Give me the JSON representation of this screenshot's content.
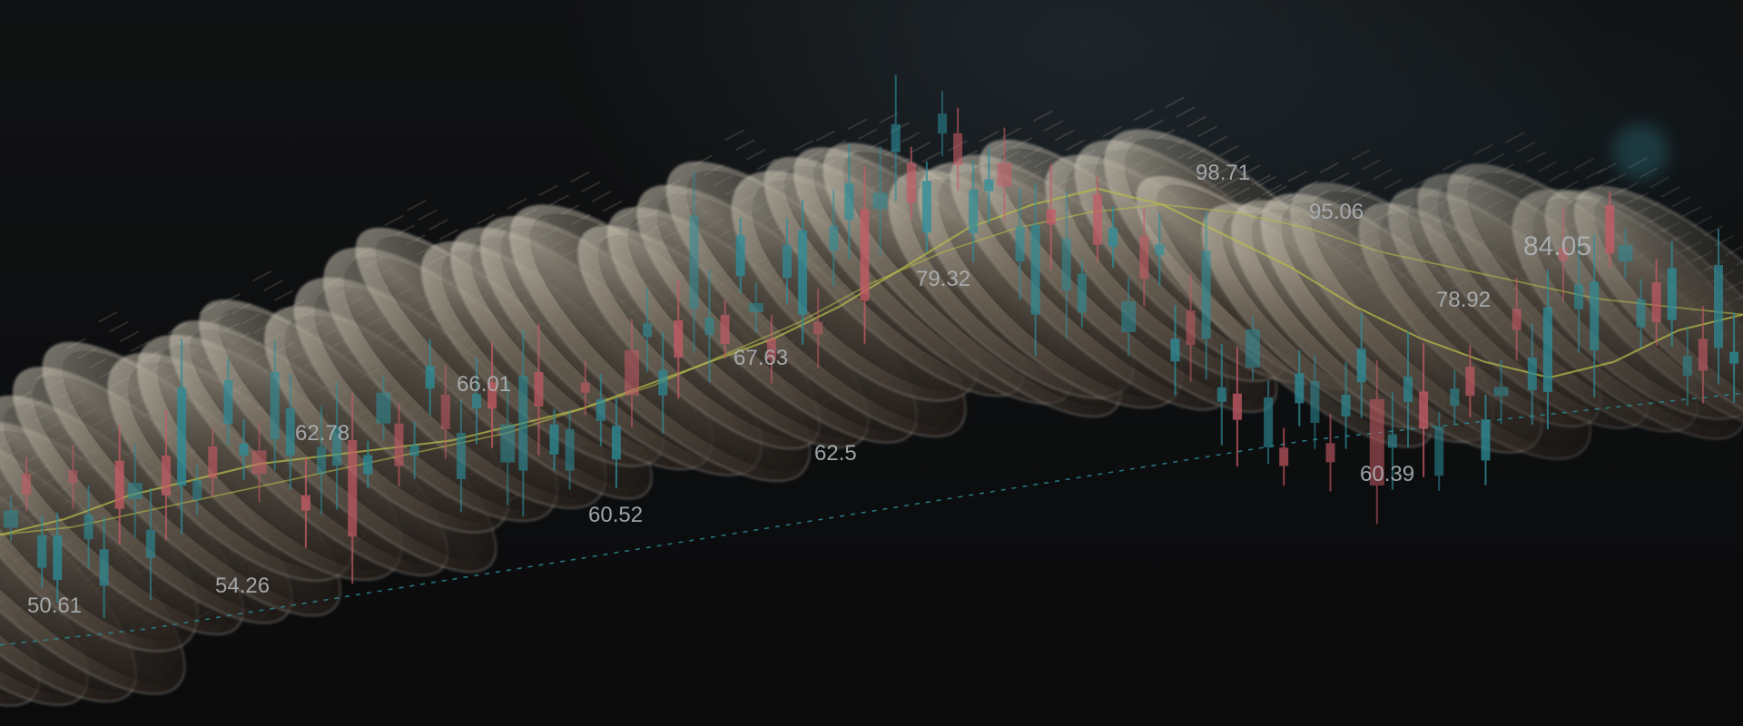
{
  "hero": {
    "background_colors": {
      "base": "#0b0c0d",
      "teal": "#2c8e9a",
      "red": "#c75b66",
      "gold": "#b9bb4b",
      "coin_light": "#c5bfb1",
      "coin_dark": "#2a211c"
    }
  },
  "chart_data": {
    "type": "candlestick",
    "title": "",
    "xlabel": "",
    "ylabel": "",
    "grid": false,
    "legend": "none",
    "visible_price_labels": [
      "50.61",
      "54.26",
      "62.78",
      "66.01",
      "60.52",
      "67.63",
      "62.5",
      "79.32",
      "98.71",
      "95.06",
      "60.39",
      "78.92",
      "84.05"
    ],
    "price_points": [
      {
        "label": "50.61",
        "value": 50.61
      },
      {
        "label": "54.26",
        "value": 54.26
      },
      {
        "label": "62.78",
        "value": 62.78
      },
      {
        "label": "66.01",
        "value": 66.01
      },
      {
        "label": "60.52",
        "value": 60.52
      },
      {
        "label": "67.63",
        "value": 67.63
      },
      {
        "label": "62.5",
        "value": 62.5
      },
      {
        "label": "79.32",
        "value": 79.32
      },
      {
        "label": "98.71",
        "value": 98.71
      },
      {
        "label": "95.06",
        "value": 95.06
      },
      {
        "label": "60.39",
        "value": 60.39
      },
      {
        "label": "78.92",
        "value": 78.92
      },
      {
        "label": "84.05",
        "value": 84.05
      }
    ],
    "series": [
      {
        "type": "candlestick",
        "values": [
          51,
          55,
          58,
          60,
          61,
          63,
          62,
          65,
          66,
          64,
          67,
          69,
          70,
          74,
          79,
          82,
          86,
          91,
          95,
          98,
          96,
          90,
          87,
          82,
          78,
          74,
          69,
          66,
          64,
          68,
          72,
          77,
          81,
          84,
          80,
          79
        ]
      },
      {
        "type": "moving-average",
        "values": [
          52,
          54,
          57,
          59,
          61,
          62,
          63,
          64,
          66,
          68,
          71,
          74,
          77,
          81,
          86,
          91,
          94,
          96,
          94,
          90,
          86,
          81,
          77,
          74,
          72,
          74,
          78,
          80
        ]
      },
      {
        "type": "moving-average",
        "values": [
          52,
          53,
          55,
          57,
          59,
          61,
          63,
          65,
          68,
          71,
          75,
          79,
          84,
          88,
          91,
          93,
          94,
          93,
          91,
          88,
          86,
          84,
          82,
          81,
          80
        ]
      },
      {
        "type": "trend",
        "values": [
          38,
          40,
          43,
          46,
          49,
          52,
          55,
          58,
          61,
          64,
          66,
          68,
          70
        ]
      }
    ]
  }
}
